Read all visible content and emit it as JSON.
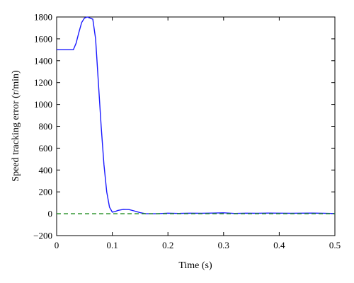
{
  "chart_data": {
    "type": "line",
    "title": "",
    "xlabel": "Time (s)",
    "ylabel": "Speed tracking error (r/min)",
    "xlim": [
      0,
      0.5
    ],
    "ylim": [
      -200,
      1800
    ],
    "x_ticks": [
      0,
      0.1,
      0.2,
      0.3,
      0.4,
      0.5
    ],
    "x_tick_labels": [
      "0",
      "0.1",
      "0.2",
      "0.3",
      "0.4",
      "0.5"
    ],
    "y_ticks": [
      -200,
      0,
      200,
      400,
      600,
      800,
      1000,
      1200,
      1400,
      1600,
      1800
    ],
    "y_tick_labels": [
      "−200",
      "0",
      "200",
      "400",
      "600",
      "800",
      "1000",
      "1200",
      "1400",
      "1600",
      "1800"
    ],
    "grid": false,
    "legend": "none",
    "series": [
      {
        "color": "#1a1aff",
        "style": "solid",
        "x": [
          0,
          0.03,
          0.035,
          0.04,
          0.045,
          0.05,
          0.055,
          0.06,
          0.065,
          0.07,
          0.075,
          0.08,
          0.085,
          0.09,
          0.095,
          0.1,
          0.105,
          0.11,
          0.12,
          0.13,
          0.14,
          0.15,
          0.16,
          0.18,
          0.2,
          0.22,
          0.24,
          0.26,
          0.28,
          0.3,
          0.32,
          0.34,
          0.36,
          0.38,
          0.4,
          0.42,
          0.44,
          0.46,
          0.48,
          0.5
        ],
        "y": [
          1500,
          1500,
          1560,
          1660,
          1750,
          1790,
          1800,
          1790,
          1780,
          1600,
          1200,
          800,
          450,
          200,
          60,
          15,
          20,
          30,
          40,
          38,
          25,
          10,
          0,
          0,
          5,
          3,
          5,
          4,
          6,
          8,
          3,
          5,
          4,
          6,
          5,
          4,
          5,
          6,
          4,
          2
        ]
      },
      {
        "color": "#1a8a1a",
        "style": "dashed",
        "x": [
          0,
          0.5
        ],
        "y": [
          0,
          0
        ]
      }
    ]
  }
}
